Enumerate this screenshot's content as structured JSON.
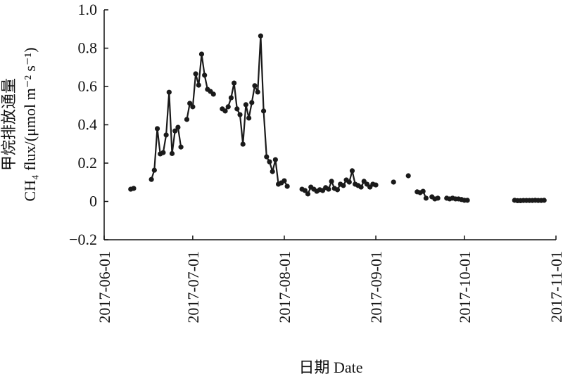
{
  "chart_data": {
    "type": "line",
    "y_label": [
      "甲烷排放通量",
      "CH₄ flux/(μmol m⁻² s⁻¹)"
    ],
    "x_label": "日期 Date",
    "xlim": [
      "2017-06-01",
      "2017-11-01"
    ],
    "xticks": [
      "2017-06-01",
      "2017-07-01",
      "2017-08-01",
      "2017-09-01",
      "2017-10-01",
      "2017-11-01"
    ],
    "ylim": [
      -0.2,
      1
    ],
    "yticks": [
      {
        "value": -0.2,
        "label": "−0.2"
      },
      0,
      0.2,
      0.4,
      0.6,
      0.8,
      {
        "value": 1,
        "label": "1.0"
      }
    ],
    "series": [
      {
        "color": "#1a1a1a",
        "x": [
          "2017-06-10",
          "2017-06-11",
          "2017-06-12",
          "2017-06-17",
          "2017-06-18",
          "2017-06-19",
          "2017-06-20",
          "2017-06-21",
          "2017-06-22",
          "2017-06-23",
          "2017-06-24",
          "2017-06-25",
          "2017-06-26",
          "2017-06-27",
          "2017-06-28",
          "2017-06-29",
          "2017-06-30",
          "2017-07-01",
          "2017-07-02",
          "2017-07-03",
          "2017-07-04",
          "2017-07-05",
          "2017-07-06",
          "2017-07-07",
          "2017-07-08",
          "2017-07-09",
          "2017-07-11",
          "2017-07-12",
          "2017-07-13",
          "2017-07-14",
          "2017-07-15",
          "2017-07-16",
          "2017-07-17",
          "2017-07-18",
          "2017-07-19",
          "2017-07-20",
          "2017-07-21",
          "2017-07-22",
          "2017-07-23",
          "2017-07-24",
          "2017-07-25",
          "2017-07-26",
          "2017-07-27",
          "2017-07-28",
          "2017-07-29",
          "2017-07-30",
          "2017-07-31",
          "2017-08-01",
          "2017-08-02",
          "2017-08-03",
          "2017-08-07",
          "2017-08-08",
          "2017-08-09",
          "2017-08-10",
          "2017-08-11",
          "2017-08-12",
          "2017-08-13",
          "2017-08-14",
          "2017-08-15",
          "2017-08-16",
          "2017-08-17",
          "2017-08-18",
          "2017-08-19",
          "2017-08-20",
          "2017-08-21",
          "2017-08-22",
          "2017-08-23",
          "2017-08-24",
          "2017-08-25",
          "2017-08-26",
          "2017-08-27",
          "2017-08-28",
          "2017-08-29",
          "2017-08-30",
          "2017-08-31",
          "2017-09-01",
          "2017-09-02",
          "2017-09-07",
          "2017-09-08",
          "2017-09-12",
          "2017-09-13",
          "2017-09-15",
          "2017-09-16",
          "2017-09-17",
          "2017-09-18",
          "2017-09-19",
          "2017-09-20",
          "2017-09-21",
          "2017-09-22",
          "2017-09-23",
          "2017-09-25",
          "2017-09-26",
          "2017-09-27",
          "2017-09-28",
          "2017-09-29",
          "2017-09-30",
          "2017-10-01",
          "2017-10-02",
          "2017-10-03",
          "2017-10-18",
          "2017-10-19",
          "2017-10-20",
          "2017-10-21",
          "2017-10-22",
          "2017-10-23",
          "2017-10-24",
          "2017-10-25",
          "2017-10-26",
          "2017-10-27",
          "2017-10-28"
        ],
        "values": [
          0.064,
          0.068,
          null,
          0.115,
          0.163,
          0.38,
          0.248,
          0.255,
          0.347,
          0.57,
          0.25,
          0.368,
          0.387,
          0.284,
          null,
          0.428,
          0.512,
          0.494,
          0.666,
          0.607,
          0.769,
          0.659,
          0.585,
          0.574,
          0.56,
          null,
          0.483,
          0.472,
          0.494,
          0.541,
          0.618,
          0.483,
          0.453,
          0.299,
          0.505,
          0.435,
          0.516,
          0.604,
          0.571,
          0.864,
          0.472,
          0.233,
          0.207,
          0.156,
          0.218,
          0.09,
          0.097,
          0.108,
          0.079,
          null,
          0.064,
          0.057,
          0.039,
          0.075,
          0.064,
          0.053,
          0.061,
          0.057,
          0.072,
          0.064,
          0.105,
          0.068,
          0.061,
          0.09,
          0.083,
          0.112,
          0.101,
          0.16,
          0.09,
          0.083,
          0.075,
          0.105,
          0.09,
          0.075,
          0.09,
          0.086,
          null,
          0.101,
          null,
          0.134,
          null,
          0.05,
          0.046,
          0.053,
          0.017,
          null,
          0.024,
          0.013,
          0.017,
          null,
          0.017,
          0.013,
          0.017,
          0.013,
          0.013,
          0.01,
          0.006,
          0.006,
          null,
          0.006,
          0.004,
          0.004,
          0.005,
          0.005,
          0.005,
          0.005,
          0.006,
          0.005,
          0.005,
          0.006
        ]
      }
    ]
  }
}
